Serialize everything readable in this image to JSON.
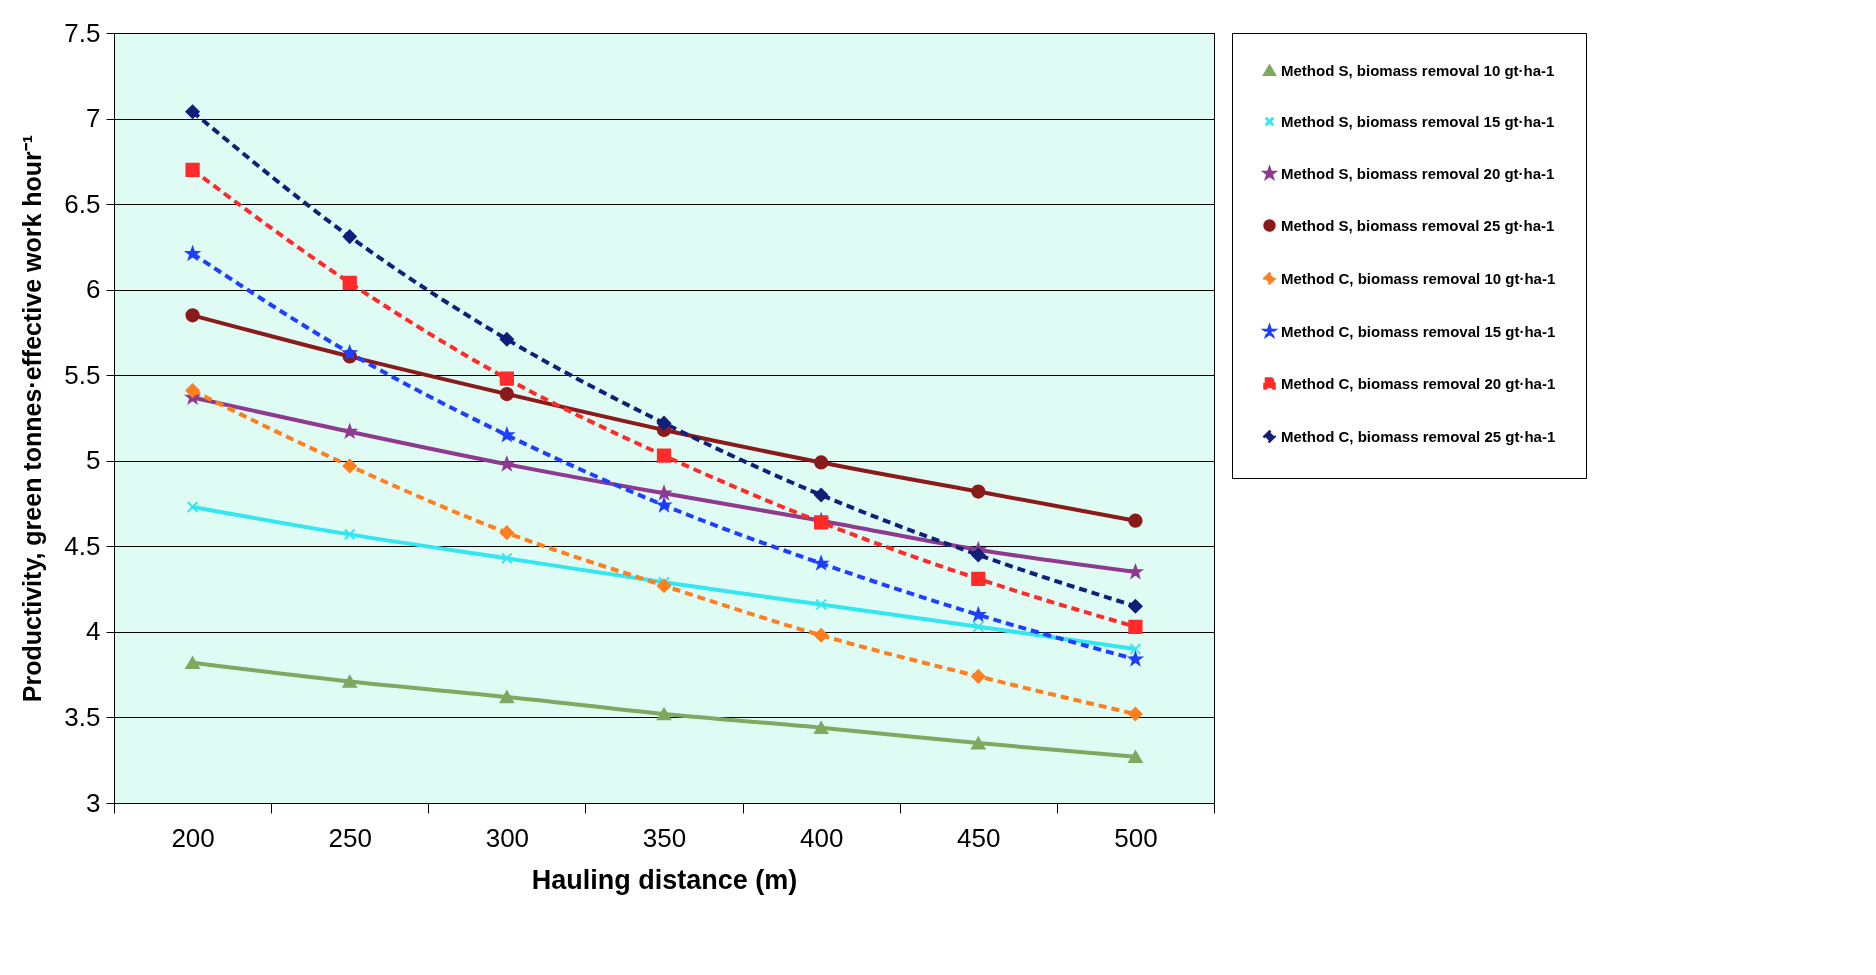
{
  "chart_data": {
    "type": "line",
    "xlabel": "Hauling distance (m)",
    "ylabel": "Productivity, green tonnes·effective work hour⁻¹",
    "categories": [
      "200",
      "250",
      "300",
      "350",
      "400",
      "450",
      "500"
    ],
    "ylim": [
      3,
      7.5
    ],
    "yticks": [
      3,
      3.5,
      4,
      4.5,
      5,
      5.5,
      6,
      6.5,
      7,
      7.5
    ],
    "grid": "y",
    "legend": "right",
    "series": [
      {
        "name": "Method S, biomass removal 10 gt·ha-1",
        "color": "#7fa860",
        "marker": "triangle",
        "line_style": "solid",
        "values": [
          3.82,
          3.71,
          3.62,
          3.52,
          3.44,
          3.35,
          3.27
        ]
      },
      {
        "name": "Method S, biomass removal 15 gt·ha-1",
        "color": "#33e6f0",
        "marker": "cross",
        "line_style": "solid",
        "values": [
          4.73,
          4.57,
          4.43,
          4.29,
          4.16,
          4.03,
          3.9
        ]
      },
      {
        "name": "Method S, biomass removal 20 gt·ha-1",
        "color": "#8e3a8e",
        "marker": "star",
        "line_style": "solid",
        "values": [
          5.37,
          5.17,
          4.98,
          4.81,
          4.65,
          4.48,
          4.35
        ]
      },
      {
        "name": "Method S, biomass removal 25 gt·ha-1",
        "color": "#8b1a1a",
        "marker": "circle",
        "line_style": "solid",
        "values": [
          5.85,
          5.61,
          5.39,
          5.18,
          4.99,
          4.82,
          4.65
        ]
      },
      {
        "name": "Method C, biomass removal 10 gt·ha-1",
        "color": "#ff7f1e",
        "marker": "diamond",
        "line_style": "dashed",
        "values": [
          5.41,
          4.97,
          4.58,
          4.27,
          3.98,
          3.74,
          3.52
        ]
      },
      {
        "name": "Method C, biomass removal 15 gt·ha-1",
        "color": "#1f3fff",
        "marker": "star",
        "line_style": "dashed",
        "values": [
          6.21,
          5.63,
          5.15,
          4.74,
          4.4,
          4.1,
          3.84
        ]
      },
      {
        "name": "Method C, biomass removal 20 gt·ha-1",
        "color": "#ff2a2a",
        "marker": "square",
        "line_style": "dashed",
        "values": [
          6.7,
          6.04,
          5.48,
          5.03,
          4.64,
          4.31,
          4.03
        ]
      },
      {
        "name": "Method C, biomass removal 25 gt·ha-1",
        "color": "#10207a",
        "marker": "diamond",
        "line_style": "dashed",
        "values": [
          7.04,
          6.31,
          5.71,
          5.22,
          4.8,
          4.45,
          4.15
        ]
      }
    ]
  }
}
